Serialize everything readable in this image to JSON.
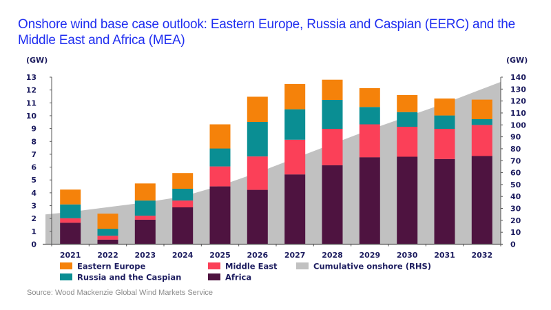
{
  "title": "Onshore wind base case outlook: Eastern Europe, Russia and Caspian (EERC) and the Middle East and Africa (MEA)",
  "source": "Source: Wood Mackenzie Global Wind Markets Service",
  "chart_data": {
    "type": "bar",
    "stacked": true,
    "title": "Onshore wind base case outlook: Eastern Europe, Russia and Caspian (EERC) and the Middle East and Africa (MEA)",
    "xlabel": "",
    "ylabel": "(GW)",
    "y2label": "(GW)",
    "ylim": [
      0,
      13
    ],
    "y2lim": [
      0,
      140
    ],
    "yticks": [
      0,
      1,
      2,
      3,
      4,
      5,
      6,
      7,
      8,
      9,
      10,
      11,
      12,
      13
    ],
    "y2ticks": [
      0,
      10,
      20,
      30,
      40,
      50,
      60,
      70,
      80,
      90,
      100,
      110,
      120,
      130,
      140
    ],
    "grid": false,
    "legend_position": "bottom",
    "categories": [
      "2021",
      "2022",
      "2023",
      "2024",
      "2025",
      "2026",
      "2027",
      "2028",
      "2029",
      "2030",
      "2031",
      "2032"
    ],
    "series": [
      {
        "name": "Africa",
        "color": "#4e1340",
        "axis": "left",
        "values": [
          1.67,
          0.36,
          1.91,
          2.87,
          4.5,
          4.23,
          5.43,
          6.15,
          6.77,
          6.81,
          6.63,
          6.86
        ]
      },
      {
        "name": "Middle East",
        "color": "#fb4058",
        "axis": "left",
        "values": [
          0.35,
          0.3,
          0.31,
          0.53,
          1.55,
          2.6,
          2.7,
          2.83,
          2.56,
          2.33,
          2.35,
          2.42
        ]
      },
      {
        "name": "Russia and the Caspian",
        "color": "#0a8e93",
        "axis": "left",
        "values": [
          1.08,
          0.54,
          1.18,
          0.92,
          1.4,
          2.69,
          2.37,
          2.25,
          1.35,
          1.14,
          1.04,
          0.45
        ]
      },
      {
        "name": "Eastern Europe",
        "color": "#f5820a",
        "axis": "left",
        "values": [
          1.15,
          1.18,
          1.33,
          1.22,
          1.88,
          1.96,
          1.97,
          1.57,
          1.47,
          1.33,
          1.32,
          1.52
        ]
      },
      {
        "name": "Cumulative onshore (RHS)",
        "type": "area",
        "color": "#c1c1c1",
        "axis": "right",
        "start_value": 25,
        "values": [
          27,
          31,
          35,
          40,
          49,
          60,
          72,
          84,
          96,
          107,
          118,
          130
        ]
      }
    ],
    "legend": [
      {
        "name": "Eastern Europe",
        "color": "#f5820a"
      },
      {
        "name": "Middle East",
        "color": "#fb4058"
      },
      {
        "name": "Cumulative onshore (RHS)",
        "color": "#c1c1c1"
      },
      {
        "name": "Russia and the Caspian",
        "color": "#0a8e93"
      },
      {
        "name": "Africa",
        "color": "#4e1340"
      }
    ]
  }
}
